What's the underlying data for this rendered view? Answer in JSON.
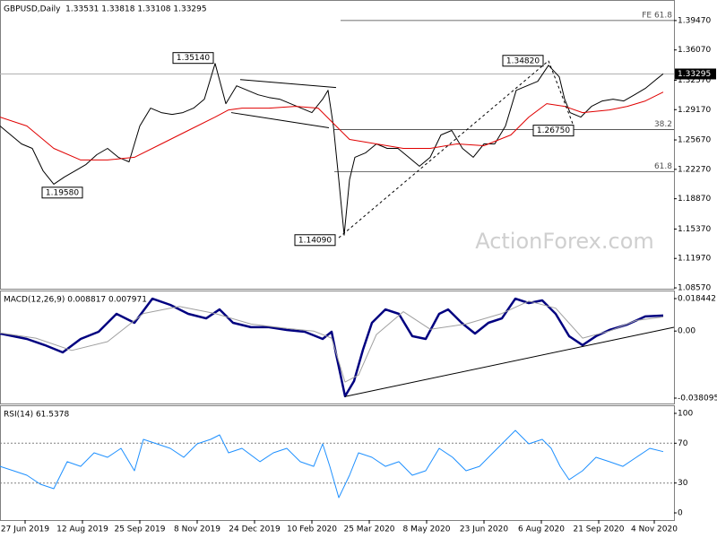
{
  "chart_data": [
    {
      "type": "line",
      "title": "GBPUSD,Daily  1.33531 1.33818 1.33108 1.33295",
      "watermark": "ActionForex.com",
      "xlim": [
        0,
        376
      ],
      "ylim": [
        1.0847,
        1.4174
      ],
      "yticks": [
        {
          "value": 1.3947,
          "label": "1.39470"
        },
        {
          "value": 1.3607,
          "label": "1.36070"
        },
        {
          "value": 1.3257,
          "label": "1.32570"
        },
        {
          "value": 1.2917,
          "label": "1.29170"
        },
        {
          "value": 1.2567,
          "label": "1.25670"
        },
        {
          "value": 1.2227,
          "label": "1.22270"
        },
        {
          "value": 1.1887,
          "label": "1.18870"
        },
        {
          "value": 1.1537,
          "label": "1.15370"
        },
        {
          "value": 1.1197,
          "label": "1.11970"
        },
        {
          "value": 1.0857,
          "label": "1.08570"
        }
      ],
      "last": 1.33295,
      "series": [
        {
          "color": "#000000",
          "x": [
            0,
            6,
            12,
            18,
            24,
            30,
            36,
            42,
            48,
            54,
            60,
            66,
            72,
            78,
            84,
            90,
            96,
            102,
            108,
            114,
            120,
            126,
            132,
            138,
            144,
            150,
            156,
            162,
            168,
            174,
            180,
            183,
            186,
            189,
            192,
            195,
            198,
            204,
            210,
            216,
            222,
            228,
            234,
            240,
            246,
            252,
            258,
            264,
            270,
            276,
            282,
            288,
            294,
            300,
            306,
            312,
            315,
            318,
            324,
            330,
            336,
            342,
            348,
            354,
            360,
            366,
            370
          ],
          "values": [
            1.2728,
            1.2624,
            1.2521,
            1.2469,
            1.2211,
            1.2056,
            1.2139,
            1.2211,
            1.2283,
            1.2397,
            1.2469,
            1.2366,
            1.2314,
            1.2728,
            1.2934,
            1.2883,
            1.2862,
            1.2883,
            1.2934,
            1.3038,
            1.3451,
            1.2986,
            1.3193,
            1.3141,
            1.3089,
            1.3058,
            1.3038,
            1.2986,
            1.2934,
            1.2883,
            1.3038,
            1.3141,
            1.2728,
            1.2108,
            1.1467,
            1.2108,
            1.2366,
            1.2418,
            1.2521,
            1.2469,
            1.2469,
            1.2366,
            1.2263,
            1.2366,
            1.2624,
            1.2676,
            1.2469,
            1.2366,
            1.2521,
            1.2521,
            1.2728,
            1.3141,
            1.3193,
            1.3244,
            1.343,
            1.3296,
            1.3038,
            1.2883,
            1.2831,
            1.2955,
            1.3017,
            1.3038,
            1.3017,
            1.3089,
            1.3162,
            1.3265,
            1.333
          ]
        },
        {
          "color": "#e00000",
          "x": [
            0,
            15,
            30,
            45,
            60,
            75,
            90,
            105,
            120,
            127.5,
            135,
            150,
            165,
            177.5,
            185,
            195,
            210,
            225,
            240,
            255,
            270,
            285,
            295,
            305,
            315,
            325,
            340,
            350,
            360,
            370
          ],
          "values": [
            1.2831,
            1.2728,
            1.2469,
            1.2335,
            1.2335,
            1.2366,
            1.2521,
            1.2676,
            1.2831,
            1.2914,
            1.2934,
            1.2934,
            1.2955,
            1.2934,
            1.2779,
            1.2573,
            1.2521,
            1.2469,
            1.2469,
            1.2521,
            1.25,
            1.2624,
            1.2831,
            1.2986,
            1.2955,
            1.2883,
            1.2914,
            1.2955,
            1.3017,
            1.312
          ]
        }
      ],
      "annotations": [
        {
          "value": 1.3514,
          "label": "1.35140",
          "x": 119
        },
        {
          "value": 1.1958,
          "label": "1.19580",
          "x": 46
        },
        {
          "value": 1.1409,
          "label": "1.14090",
          "x": 187
        },
        {
          "value": 1.3482,
          "label": "1.34820",
          "x": 303
        },
        {
          "value": 1.2675,
          "label": "1.26750",
          "x": 320
        }
      ],
      "levels": [
        {
          "value": 1.3947,
          "label": "FE 61.8",
          "x": 190
        },
        {
          "value": 1.2686,
          "label": "38.2",
          "x": 186.5
        },
        {
          "value": 1.2201,
          "label": "61.8",
          "x": 186.5
        }
      ],
      "trendlines": [
        {
          "x": [
            134,
            187.5
          ],
          "values": [
            1.3265,
            1.3172
          ],
          "style": "solid"
        },
        {
          "x": [
            129,
            183.5
          ],
          "values": [
            1.2883,
            1.2707
          ],
          "style": "solid"
        },
        {
          "x": [
            189,
            306
          ],
          "values": [
            1.1436,
            1.3482
          ],
          "style": "dashed"
        },
        {
          "x": [
            306,
            320
          ],
          "values": [
            1.3482,
            1.2728
          ],
          "style": "dashed"
        }
      ]
    },
    {
      "type": "line",
      "title": "MACD(12,26,9) 0.008817 0.007971",
      "xlim": [
        0,
        376
      ],
      "ylim": [
        -0.04115,
        0.022515
      ],
      "yticks": [
        0.018442,
        {
          "value": 0,
          "label": "0.00"
        },
        -0.038095
      ],
      "series": [
        {
          "color": "#000080",
          "width": 2.5,
          "x": [
            0,
            15,
            25,
            35,
            45,
            55,
            65,
            75,
            85,
            95,
            105,
            115,
            122.5,
            130,
            140,
            150,
            160,
            170,
            180,
            185,
            187.5,
            192.5,
            197.5,
            202.5,
            207.5,
            215,
            222.5,
            230,
            237.5,
            245,
            250,
            257.5,
            265,
            272.5,
            280,
            287.5,
            295,
            302.5,
            310,
            317.5,
            325,
            332.5,
            340,
            350,
            360,
            370
          ],
          "values": [
            -0.0014,
            -0.0045,
            -0.008,
            -0.0121,
            -0.0045,
            -0.0004,
            0.0098,
            0.0047,
            0.0184,
            0.0149,
            0.0098,
            0.0072,
            0.0123,
            0.0047,
            0.0022,
            0.0022,
            0.0006,
            -0.0004,
            -0.0045,
            -0.0004,
            -0.0131,
            -0.037,
            -0.0284,
            -0.0106,
            0.0047,
            0.0123,
            0.0098,
            -0.0029,
            -0.0045,
            0.0098,
            0.0123,
            0.0047,
            -0.0014,
            0.0047,
            0.0072,
            0.0184,
            0.0159,
            0.0174,
            0.0098,
            -0.0029,
            -0.008,
            -0.0029,
            0.0006,
            0.0037,
            0.0083,
            0.0088
          ]
        },
        {
          "color": "#a0a0a0",
          "width": 1,
          "x": [
            0,
            20,
            40,
            60,
            80,
            100,
            120,
            140,
            160,
            175,
            185,
            192.5,
            200,
            210,
            225,
            240,
            260,
            280,
            295,
            310,
            325,
            340,
            355,
            370
          ],
          "values": [
            -0.001,
            -0.004,
            -0.011,
            -0.006,
            0.01,
            0.014,
            0.01,
            0.004,
            0.0015,
            0,
            -0.004,
            -0.029,
            -0.025,
            -0.002,
            0.011,
            0.001,
            0.004,
            0.01,
            0.017,
            0.013,
            -0.004,
            0,
            0.006,
            0.008
          ]
        }
      ],
      "trendlines": [
        {
          "x": [
            192.5,
            376
          ],
          "values": [
            -0.0372,
            0.00216
          ],
          "style": "solid"
        }
      ]
    },
    {
      "type": "line",
      "title": "RSI(14) 61.5378",
      "xlim": [
        0,
        376
      ],
      "ylim": [
        -7.2,
        107.2
      ],
      "yticks": [
        100,
        70,
        30,
        0
      ],
      "levels": [
        70,
        30
      ],
      "series": [
        {
          "color": "#1e90ff",
          "width": 1,
          "x": [
            0,
            7.5,
            15,
            22.5,
            30,
            37.5,
            45,
            52.5,
            60,
            67.5,
            75,
            80,
            87.5,
            95,
            102.5,
            110,
            117.5,
            122.5,
            127.5,
            135,
            145,
            152.5,
            160,
            167.5,
            175,
            180,
            184,
            189,
            195,
            200,
            207.5,
            215,
            222.5,
            230,
            237.5,
            245,
            252.5,
            260,
            267.5,
            275,
            282.5,
            287.5,
            295,
            302.5,
            307.5,
            312.5,
            317.5,
            325,
            332.5,
            340,
            347.5,
            355,
            362.5,
            370
          ],
          "values": [
            46.8,
            42.3,
            37.8,
            28.8,
            24.3,
            51.4,
            46.8,
            60.4,
            55.9,
            64.9,
            42.3,
            73.9,
            69.4,
            64.9,
            55.9,
            69.4,
            73.9,
            78.4,
            60.4,
            64.9,
            51.4,
            60.4,
            64.9,
            51.4,
            46.8,
            69.4,
            46.8,
            15.3,
            37.8,
            60.4,
            55.9,
            46.8,
            51.4,
            37.8,
            42.3,
            64.9,
            55.9,
            42.3,
            46.8,
            60.4,
            73.9,
            82.9,
            69.4,
            73.9,
            64.9,
            46.8,
            33.3,
            42.3,
            55.9,
            51.4,
            46.8,
            55.9,
            64.9,
            61.5
          ]
        }
      ],
      "xticks": [
        {
          "value": 14,
          "label": "27 Jun 2019"
        },
        {
          "value": 46,
          "label": "12 Aug 2019"
        },
        {
          "value": 78,
          "label": "25 Sep 2019"
        },
        {
          "value": 110,
          "label": "8 Nov 2019"
        },
        {
          "value": 142,
          "label": "24 Dec 2019"
        },
        {
          "value": 174,
          "label": "10 Feb 2020"
        },
        {
          "value": 206,
          "label": "25 Mar 2020"
        },
        {
          "value": 238,
          "label": "8 May 2020"
        },
        {
          "value": 270,
          "label": "23 Jun 2020"
        },
        {
          "value": 302,
          "label": "6 Aug 2020"
        },
        {
          "value": 334,
          "label": "21 Sep 2020"
        },
        {
          "value": 365,
          "label": "4 Nov 2020"
        }
      ]
    }
  ]
}
